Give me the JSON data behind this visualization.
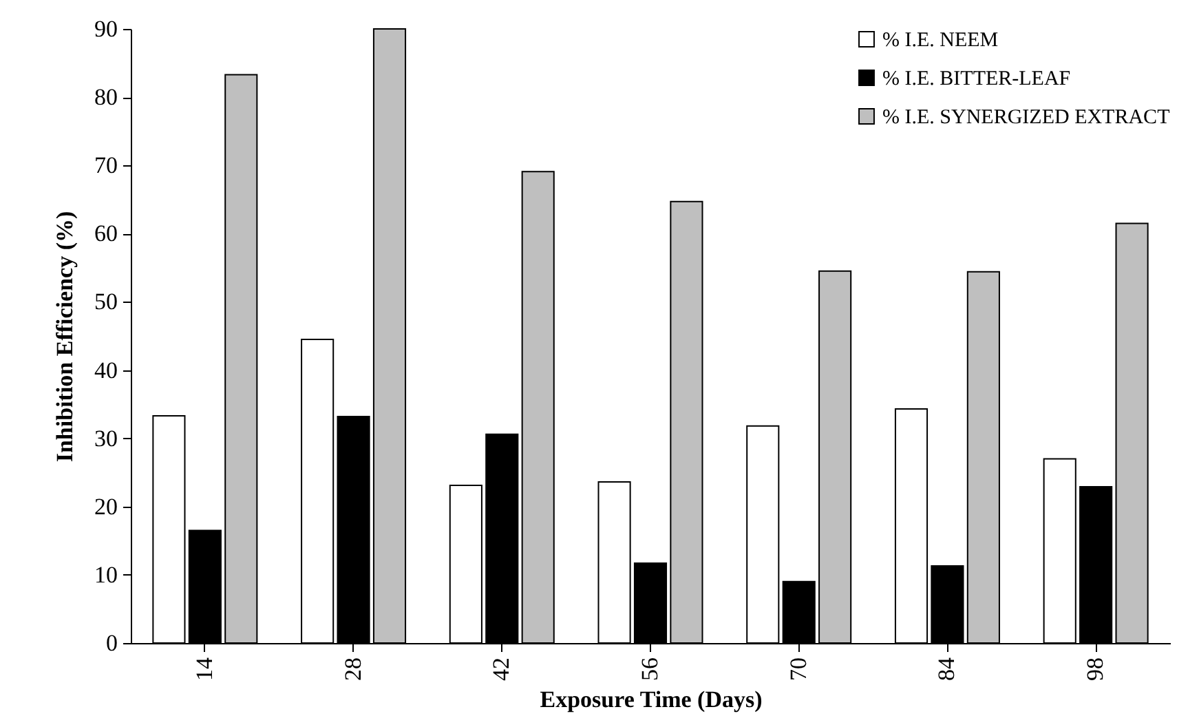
{
  "chart_data": {
    "type": "bar",
    "xlabel": "Exposure Time (Days)",
    "ylabel": "Inhibition Efficiency (%)",
    "categories": [
      "14",
      "28",
      "42",
      "56",
      "70",
      "84",
      "98"
    ],
    "series": [
      {
        "name": "% I.E. NEEM",
        "color": "#ffffff",
        "values": [
          33.3,
          44.5,
          23.1,
          23.6,
          31.8,
          34.3,
          27.0
        ]
      },
      {
        "name": "% I.E. BITTER-LEAF",
        "color": "#000000",
        "values": [
          16.5,
          33.2,
          30.6,
          11.7,
          9.0,
          11.3,
          22.9
        ]
      },
      {
        "name": "% I.E. SYNERGIZED EXTRACT",
        "color": "#bfbfbf",
        "values": [
          83.3,
          90,
          69.1,
          64.7,
          54.5,
          54.4,
          61.5
        ]
      }
    ],
    "ylim": [
      0,
      90
    ],
    "yticks": [
      0,
      10,
      20,
      30,
      40,
      50,
      60,
      70,
      80,
      90
    ],
    "grid": false,
    "legend": "top right"
  }
}
